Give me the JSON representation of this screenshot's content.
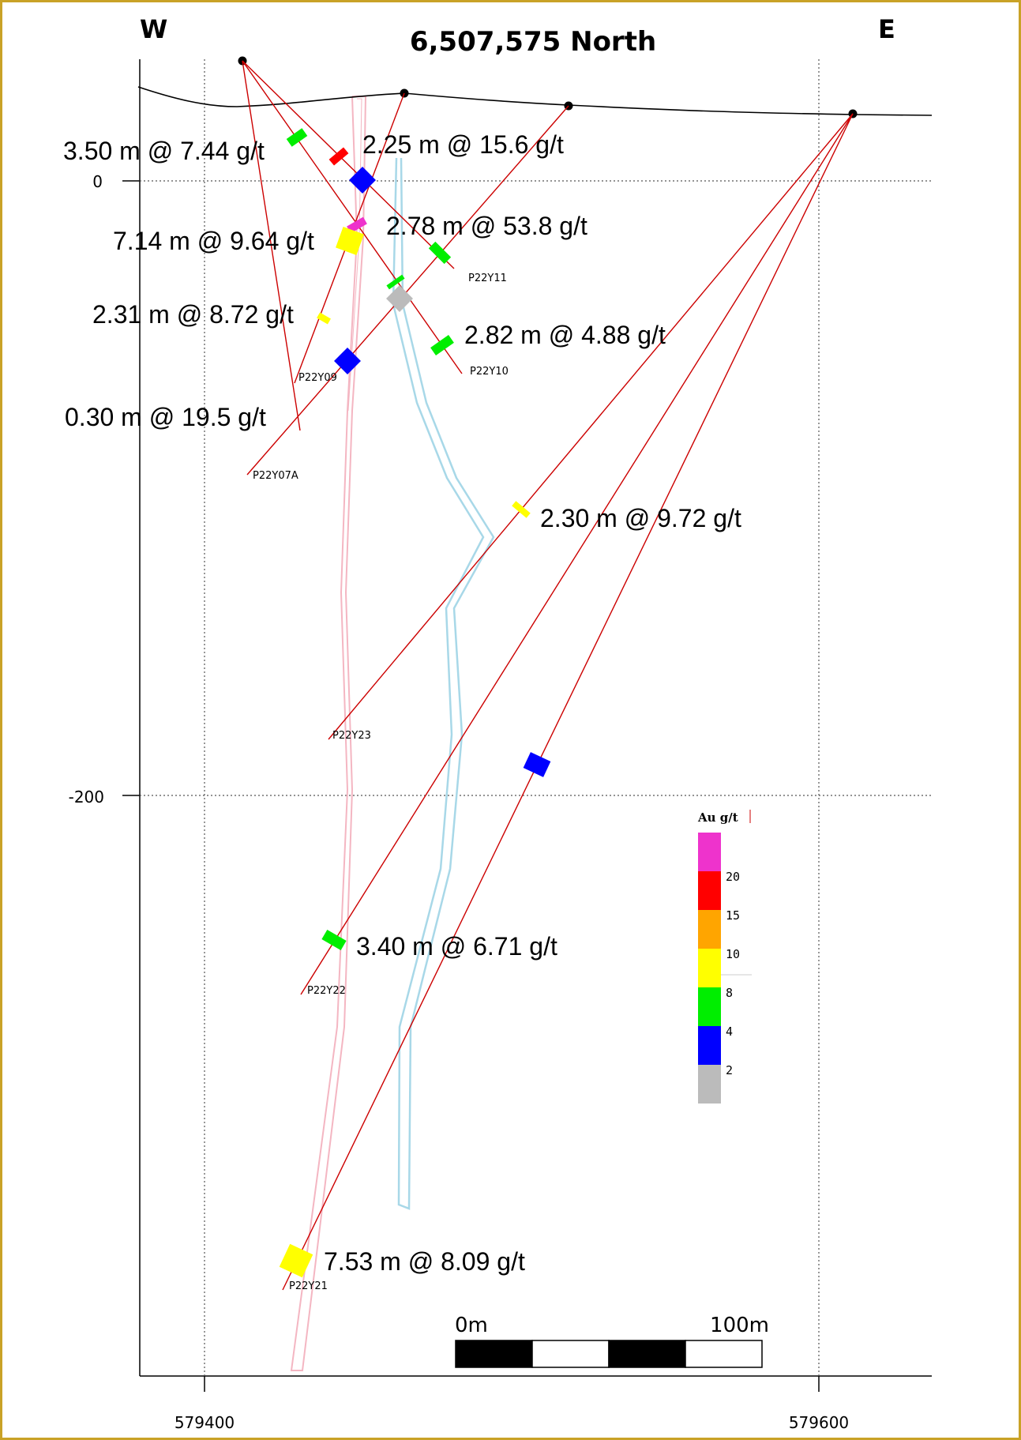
{
  "header": {
    "west": "W",
    "east": "E",
    "title": "6,507,575 North"
  },
  "axes": {
    "y_labels": [
      "0",
      "-200"
    ],
    "x_labels": [
      "579400",
      "579600"
    ]
  },
  "intercepts": [
    "3.50 m @ 7.44 g/t",
    "2.25 m @ 15.6 g/t",
    "2.78 m @ 53.8 g/t",
    "7.14 m @ 9.64 g/t",
    "2.31 m @ 8.72 g/t",
    "2.82 m @ 4.88 g/t",
    "0.30 m @ 19.5 g/t",
    "2.30 m @ 9.72 g/t",
    "3.40 m @ 6.71 g/t",
    "7.53 m @ 8.09 g/t"
  ],
  "holes": [
    "P22Y11",
    "P22Y10",
    "P22Y09",
    "P22Y07A",
    "P22Y23",
    "P22Y22",
    "P22Y21"
  ],
  "legend": {
    "title": "Au g/t",
    "labels": [
      "20",
      "15",
      "10",
      "8",
      "4",
      "2"
    ],
    "colors": [
      "#ee33cc",
      "#ff0000",
      "#ffa500",
      "#ffff00",
      "#00ee00",
      "#0000ff",
      "#bbbbbb"
    ]
  },
  "scalebar": {
    "start": "0m",
    "end": "100m"
  },
  "colors": {
    "frame": "#c9a227",
    "drill_trace": "#cc0000",
    "pink_zone": "#f4b6c2",
    "blue_zone": "#a8d8e8"
  }
}
